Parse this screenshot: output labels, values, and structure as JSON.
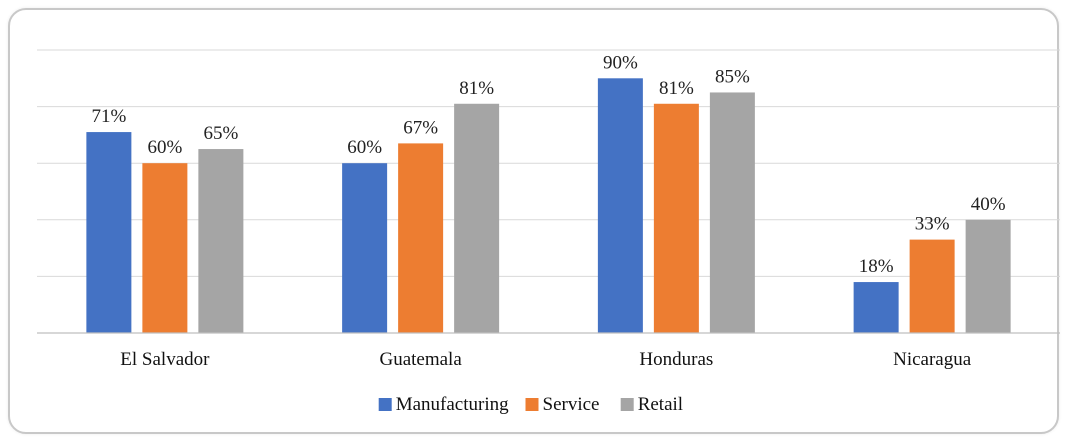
{
  "chart_data": {
    "type": "bar",
    "title": "",
    "xlabel": "",
    "ylabel": "",
    "categories": [
      "El Salvador",
      "Guatemala",
      "Honduras",
      "Nicaragua"
    ],
    "series": [
      {
        "name": "Manufacturing",
        "color": "#4472C4",
        "values": [
          71,
          60,
          90,
          18
        ]
      },
      {
        "name": "Service",
        "color": "#ED7D31",
        "values": [
          60,
          67,
          81,
          33
        ]
      },
      {
        "name": "Retail",
        "color": "#A5A5A5",
        "values": [
          65,
          81,
          85,
          40
        ]
      }
    ],
    "value_labels": [
      [
        "71%",
        "60%",
        "90%",
        "18%"
      ],
      [
        "60%",
        "67%",
        "81%",
        "33%"
      ],
      [
        "65%",
        "81%",
        "85%",
        "40%"
      ]
    ],
    "ylim": [
      0,
      100
    ],
    "grid": true,
    "legend_position": "bottom",
    "gridline_color": "#d9d9d9"
  }
}
